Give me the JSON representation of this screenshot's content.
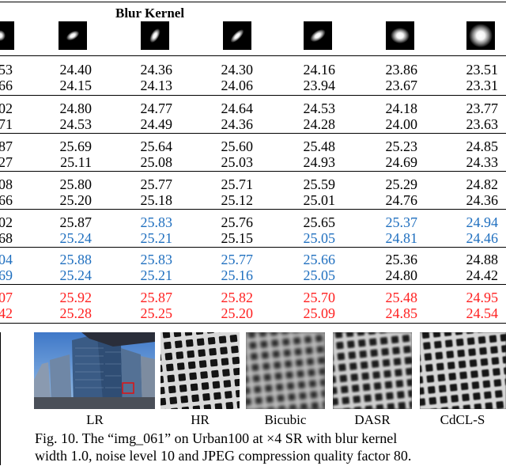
{
  "table": {
    "header": "Blur Kernel",
    "kernels": [
      {
        "icon": "kernel-partial-icon",
        "angle": 0,
        "w": 14,
        "h": 14
      },
      {
        "icon": "kernel-ellipse-icon",
        "angle": -30,
        "w": 18,
        "h": 10
      },
      {
        "icon": "kernel-ellipse-icon",
        "angle": -60,
        "w": 20,
        "h": 10
      },
      {
        "icon": "kernel-ellipse-icon",
        "angle": -45,
        "w": 22,
        "h": 9
      },
      {
        "icon": "kernel-ellipse-icon",
        "angle": -35,
        "w": 22,
        "h": 12
      },
      {
        "icon": "kernel-ellipse-icon",
        "angle": 0,
        "w": 24,
        "h": 20
      },
      {
        "icon": "kernel-disk-icon",
        "angle": 0,
        "w": 30,
        "h": 30
      }
    ],
    "left_partial": [
      [
        "53",
        "66"
      ],
      [
        "02",
        "71"
      ],
      [
        "87",
        "27"
      ],
      [
        "08",
        "66"
      ],
      [
        "02",
        "68"
      ],
      [
        "04",
        "69"
      ],
      [
        "07",
        "42"
      ]
    ],
    "left_partial_colors": [
      "black",
      "black",
      "black",
      "black",
      "black",
      "blue",
      "red"
    ],
    "rows": [
      {
        "cols": [
          [
            "24.40",
            "24.15"
          ],
          [
            "24.36",
            "24.13"
          ],
          [
            "24.30",
            "24.06"
          ],
          [
            "24.16",
            "23.94"
          ],
          [
            "23.86",
            "23.67"
          ],
          [
            "23.51",
            "23.31"
          ]
        ],
        "colors": [
          [
            "black",
            "black"
          ],
          [
            "black",
            "black"
          ],
          [
            "black",
            "black"
          ],
          [
            "black",
            "black"
          ],
          [
            "black",
            "black"
          ],
          [
            "black",
            "black"
          ]
        ]
      },
      {
        "cols": [
          [
            "24.80",
            "24.53"
          ],
          [
            "24.77",
            "24.49"
          ],
          [
            "24.64",
            "24.36"
          ],
          [
            "24.53",
            "24.28"
          ],
          [
            "24.18",
            "24.00"
          ],
          [
            "23.77",
            "23.63"
          ]
        ],
        "colors": [
          [
            "black",
            "black"
          ],
          [
            "black",
            "black"
          ],
          [
            "black",
            "black"
          ],
          [
            "black",
            "black"
          ],
          [
            "black",
            "black"
          ],
          [
            "black",
            "black"
          ]
        ]
      },
      {
        "cols": [
          [
            "25.69",
            "25.11"
          ],
          [
            "25.64",
            "25.08"
          ],
          [
            "25.60",
            "25.03"
          ],
          [
            "25.48",
            "24.93"
          ],
          [
            "25.23",
            "24.69"
          ],
          [
            "24.85",
            "24.33"
          ]
        ],
        "colors": [
          [
            "black",
            "black"
          ],
          [
            "black",
            "black"
          ],
          [
            "black",
            "black"
          ],
          [
            "black",
            "black"
          ],
          [
            "black",
            "black"
          ],
          [
            "black",
            "black"
          ]
        ]
      },
      {
        "cols": [
          [
            "25.80",
            "25.20"
          ],
          [
            "25.77",
            "25.18"
          ],
          [
            "25.71",
            "25.12"
          ],
          [
            "25.59",
            "25.01"
          ],
          [
            "25.29",
            "24.76"
          ],
          [
            "24.82",
            "24.36"
          ]
        ],
        "colors": [
          [
            "black",
            "black"
          ],
          [
            "black",
            "black"
          ],
          [
            "black",
            "black"
          ],
          [
            "black",
            "black"
          ],
          [
            "black",
            "black"
          ],
          [
            "black",
            "black"
          ]
        ]
      },
      {
        "cols": [
          [
            "25.87",
            "25.24"
          ],
          [
            "25.83",
            "25.21"
          ],
          [
            "25.76",
            "25.15"
          ],
          [
            "25.65",
            "25.05"
          ],
          [
            "25.37",
            "24.81"
          ],
          [
            "24.94",
            "24.46"
          ]
        ],
        "colors": [
          [
            "black",
            "blue"
          ],
          [
            "blue",
            "blue"
          ],
          [
            "black",
            "black"
          ],
          [
            "black",
            "blue"
          ],
          [
            "blue",
            "blue"
          ],
          [
            "blue",
            "blue"
          ]
        ]
      },
      {
        "cols": [
          [
            "25.88",
            "25.24"
          ],
          [
            "25.83",
            "25.21"
          ],
          [
            "25.77",
            "25.16"
          ],
          [
            "25.66",
            "25.05"
          ],
          [
            "25.36",
            "24.80"
          ],
          [
            "24.88",
            "24.42"
          ]
        ],
        "colors": [
          [
            "blue",
            "blue"
          ],
          [
            "blue",
            "blue"
          ],
          [
            "blue",
            "blue"
          ],
          [
            "blue",
            "blue"
          ],
          [
            "black",
            "black"
          ],
          [
            "black",
            "black"
          ]
        ]
      },
      {
        "cols": [
          [
            "25.92",
            "25.28"
          ],
          [
            "25.87",
            "25.25"
          ],
          [
            "25.82",
            "25.20"
          ],
          [
            "25.70",
            "25.09"
          ],
          [
            "25.48",
            "24.85"
          ],
          [
            "24.95",
            "24.54"
          ]
        ],
        "colors": [
          [
            "red",
            "red"
          ],
          [
            "red",
            "red"
          ],
          [
            "red",
            "red"
          ],
          [
            "red",
            "red"
          ],
          [
            "red",
            "red"
          ],
          [
            "red",
            "red"
          ]
        ]
      }
    ]
  },
  "figure": {
    "labels": [
      "LR",
      "HR",
      "Bicubic",
      "DASR",
      "CdCL-S"
    ],
    "caption_line1": "Fig. 10. The “img_061” on Urban100 at ×4 SR with blur kernel",
    "caption_line2": "width 1.0, noise level 10 and JPEG compression quality factor 80.",
    "icons": [
      "city-photo-icon",
      "grid-hr-icon",
      "grid-bicubic-icon",
      "grid-dasr-icon",
      "grid-cdcl-icon"
    ]
  }
}
